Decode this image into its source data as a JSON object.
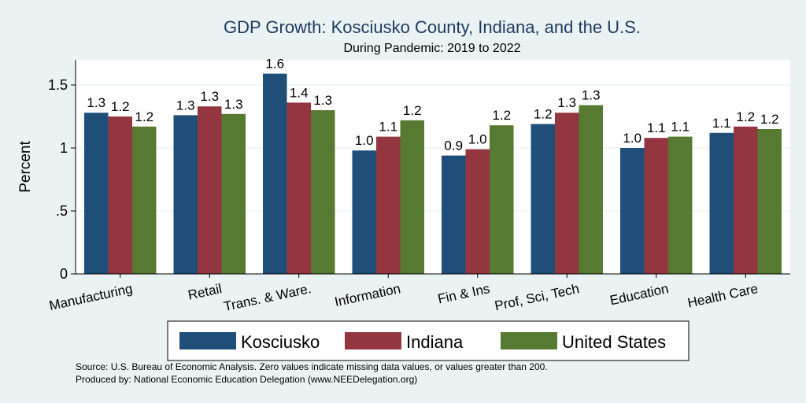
{
  "chart_data": {
    "type": "bar",
    "title": "GDP Growth: Kosciusko County, Indiana, and the U.S.",
    "subtitle": "During Pandemic: 2019 to 2022",
    "ylabel": "Percent",
    "xlabel": "",
    "ylim": [
      0,
      1.7
    ],
    "yticks": [
      0,
      0.5,
      1,
      1.5
    ],
    "ytick_labels": [
      "0",
      ".5",
      "1",
      "1.5"
    ],
    "categories": [
      "Manufacturing",
      "Retail",
      "Trans. & Ware.",
      "Information",
      "Fin & Ins",
      "Prof, Sci, Tech",
      "Education",
      "Health Care"
    ],
    "series": [
      {
        "name": "Kosciusko",
        "color": "#1f4e79",
        "values": [
          1.28,
          1.26,
          1.59,
          0.98,
          0.94,
          1.19,
          1.0,
          1.12
        ],
        "labels": [
          "1.3",
          "1.3",
          "1.6",
          "1.0",
          "0.9",
          "1.2",
          "1.0",
          "1.1"
        ]
      },
      {
        "name": "Indiana",
        "color": "#93363f",
        "values": [
          1.25,
          1.33,
          1.36,
          1.09,
          0.99,
          1.28,
          1.08,
          1.17
        ],
        "labels": [
          "1.2",
          "1.3",
          "1.4",
          "1.1",
          "1.0",
          "1.3",
          "1.1",
          "1.2"
        ]
      },
      {
        "name": "United States",
        "color": "#567a31",
        "values": [
          1.17,
          1.27,
          1.3,
          1.22,
          1.18,
          1.34,
          1.09,
          1.15
        ],
        "labels": [
          "1.2",
          "1.3",
          "1.3",
          "1.2",
          "1.2",
          "1.3",
          "1.1",
          "1.2"
        ]
      }
    ],
    "grid": true,
    "legend": "bottom"
  },
  "source_line": "Source: U.S. Bureau of Economic Analysis. Zero values indicate missing data values, or values greater than 200.",
  "produced_line": "Produced by: National Economic Education Delegation (www.NEEDelegation.org)"
}
